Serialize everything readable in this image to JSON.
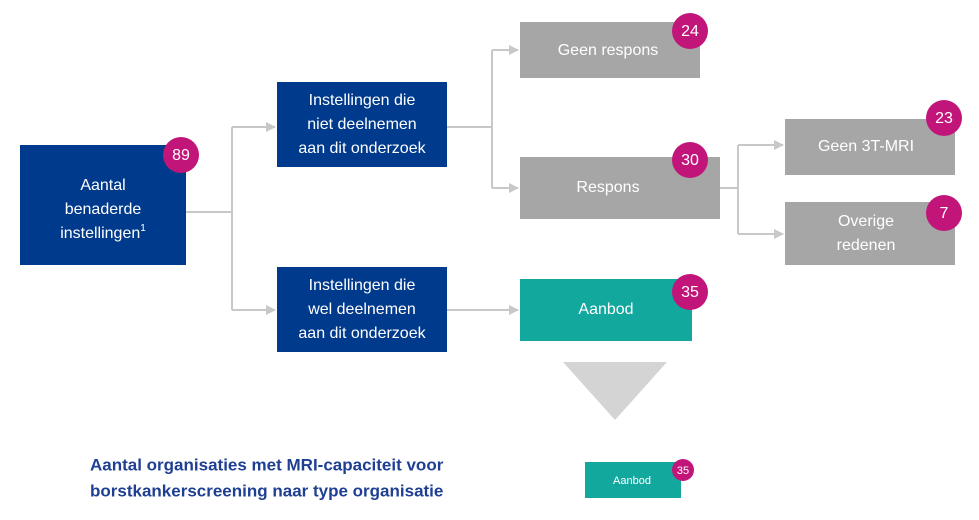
{
  "nodes": [
    {
      "label": [
        "Aantal",
        "benaderde",
        "instellingen"
      ],
      "footnote_mark": "1",
      "count": 89
    },
    {
      "label": [
        "Instellingen die",
        "niet deelnemen",
        "aan dit onderzoek"
      ]
    },
    {
      "label": [
        "Instellingen die",
        "wel deelnemen",
        "aan dit onderzoek"
      ]
    },
    {
      "label": [
        "Geen respons"
      ],
      "count": 24
    },
    {
      "label": [
        "Respons"
      ],
      "count": 30
    },
    {
      "label": [
        "Aanbod"
      ],
      "count": 35
    },
    {
      "label": [
        "Geen 3T-MRI"
      ],
      "count": 23
    },
    {
      "label": [
        "Overige",
        "redenen"
      ],
      "count": 7
    }
  ],
  "footer": {
    "title": [
      "Aantal organisaties met MRI-capaciteit voor",
      "borstkankerscreening naar type organisatie"
    ],
    "legend": {
      "label": "Aanbod",
      "count": 35
    }
  }
}
